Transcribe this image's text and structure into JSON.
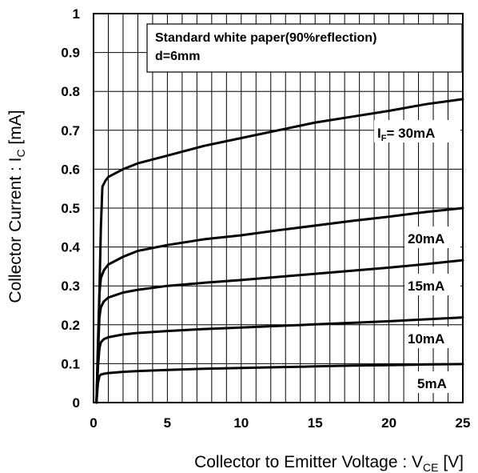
{
  "chart_data": {
    "type": "line",
    "title": "",
    "xlabel": "Collector to Emitter Voltage : V",
    "xlabel_sub": "CE",
    "xlabel_unit": " [V]",
    "ylabel": "Collector Current : I",
    "ylabel_sub": "C",
    "ylabel_unit": " [mA]",
    "xlim": [
      0,
      25
    ],
    "ylim": [
      0,
      1
    ],
    "x_ticks": [
      0,
      5,
      10,
      15,
      20,
      25
    ],
    "x_tick_labels": [
      "0",
      "5",
      "10",
      "15",
      "20",
      "25"
    ],
    "y_ticks": [
      0,
      0.1,
      0.2,
      0.3,
      0.4,
      0.5,
      0.6,
      0.7,
      0.8,
      0.9,
      1
    ],
    "y_tick_labels": [
      "0",
      "0.1",
      "0.2",
      "0.3",
      "0.4",
      "0.5",
      "0.6",
      "0.7",
      "0.8",
      "0.9",
      "1"
    ],
    "grid": true,
    "annotation": {
      "line1": "Standard  white paper(90%reflection)",
      "line2": "d=6mm"
    },
    "series": [
      {
        "name": "I",
        "name_sub": "F",
        "name_rest": "= 30mA",
        "x": [
          0.2,
          0.35,
          0.5,
          0.6,
          0.8,
          1,
          2,
          3,
          5,
          7.5,
          10,
          12.5,
          15,
          17.5,
          20,
          22.5,
          25
        ],
        "y": [
          0,
          0.2,
          0.45,
          0.555,
          0.57,
          0.58,
          0.6,
          0.615,
          0.635,
          0.66,
          0.68,
          0.7,
          0.72,
          0.735,
          0.75,
          0.767,
          0.78
        ]
      },
      {
        "name": "20mA",
        "x": [
          0.2,
          0.3,
          0.4,
          0.5,
          0.7,
          1,
          2,
          3,
          5,
          7.5,
          10,
          12.5,
          15,
          17.5,
          20,
          22.5,
          25
        ],
        "y": [
          0,
          0.15,
          0.28,
          0.32,
          0.34,
          0.355,
          0.375,
          0.39,
          0.405,
          0.42,
          0.43,
          0.443,
          0.455,
          0.467,
          0.478,
          0.49,
          0.5
        ]
      },
      {
        "name": "15mA",
        "x": [
          0.2,
          0.3,
          0.4,
          0.5,
          0.7,
          1,
          2,
          3,
          5,
          7.5,
          10,
          12.5,
          15,
          17.5,
          20,
          22.5,
          25
        ],
        "y": [
          0,
          0.12,
          0.22,
          0.245,
          0.26,
          0.27,
          0.283,
          0.29,
          0.3,
          0.308,
          0.315,
          0.323,
          0.331,
          0.339,
          0.347,
          0.356,
          0.366
        ]
      },
      {
        "name": "10mA",
        "x": [
          0.2,
          0.3,
          0.4,
          0.5,
          0.7,
          1,
          2,
          3,
          5,
          7.5,
          10,
          12.5,
          15,
          17.5,
          20,
          22.5,
          25
        ],
        "y": [
          0,
          0.09,
          0.14,
          0.155,
          0.163,
          0.168,
          0.175,
          0.179,
          0.184,
          0.189,
          0.193,
          0.197,
          0.201,
          0.205,
          0.209,
          0.214,
          0.219
        ]
      },
      {
        "name": "5mA",
        "x": [
          0.2,
          0.3,
          0.4,
          0.5,
          0.7,
          1,
          2,
          3,
          5,
          7.5,
          10,
          12.5,
          15,
          17.5,
          20,
          22.5,
          25
        ],
        "y": [
          0,
          0.05,
          0.068,
          0.072,
          0.074,
          0.076,
          0.079,
          0.081,
          0.084,
          0.087,
          0.089,
          0.091,
          0.093,
          0.095,
          0.096,
          0.098,
          0.099
        ]
      }
    ]
  }
}
